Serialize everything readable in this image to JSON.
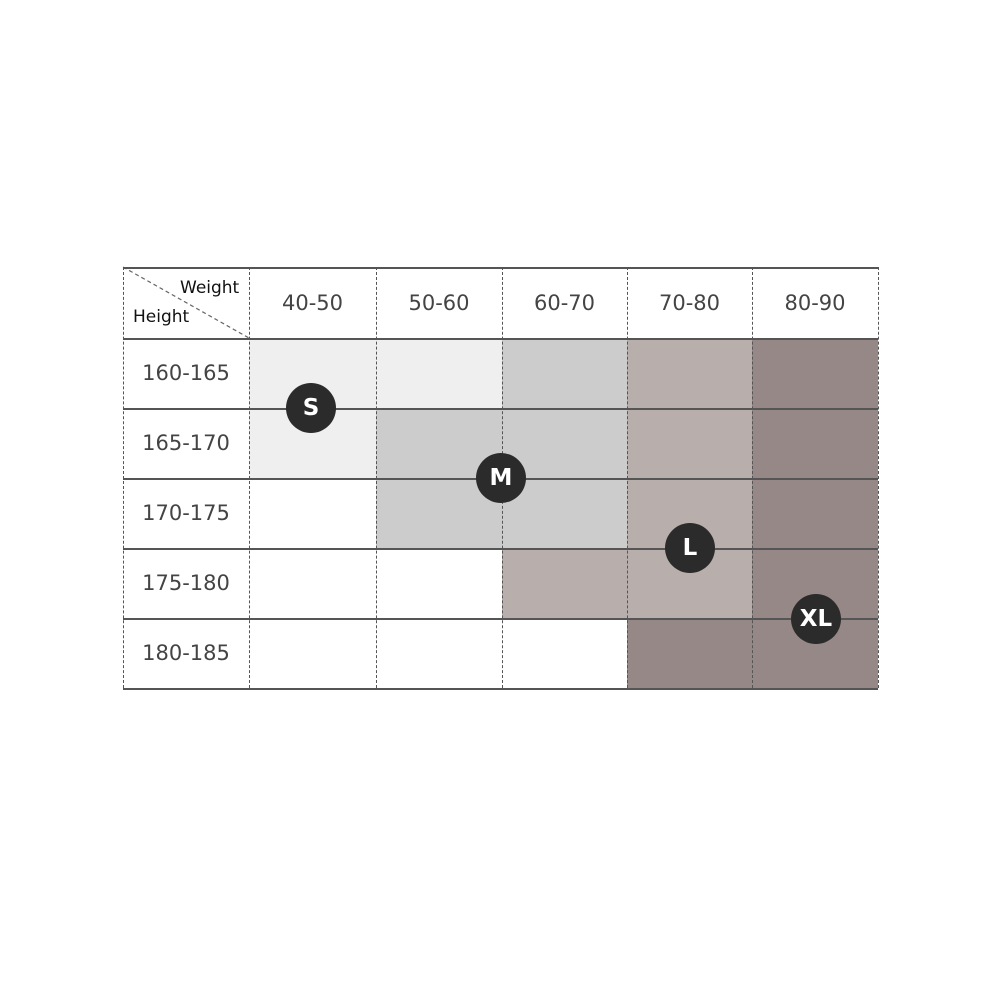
{
  "chart_data": {
    "type": "table",
    "corner": {
      "column_header": "Weight",
      "row_header": "Height"
    },
    "columns": [
      "40-50",
      "50-60",
      "60-70",
      "70-80",
      "80-90"
    ],
    "rows": [
      "160-165",
      "165-170",
      "170-175",
      "175-180",
      "180-185"
    ],
    "cells": [
      [
        "S",
        "S",
        "M",
        "L",
        "XL"
      ],
      [
        "S",
        "M",
        "M",
        "L",
        "XL"
      ],
      [
        "",
        "M",
        "M",
        "L",
        "XL"
      ],
      [
        "",
        "",
        "L",
        "L",
        "XL"
      ],
      [
        "",
        "",
        "",
        "XL",
        "XL"
      ]
    ],
    "sizes": [
      "S",
      "M",
      "L",
      "XL"
    ],
    "colors": {
      "S": "#efefef",
      "M": "#cccccc",
      "L": "#b8aeac",
      "XL": "#958887",
      "none": "#ffffff",
      "badge": "#2b2b2b"
    }
  }
}
